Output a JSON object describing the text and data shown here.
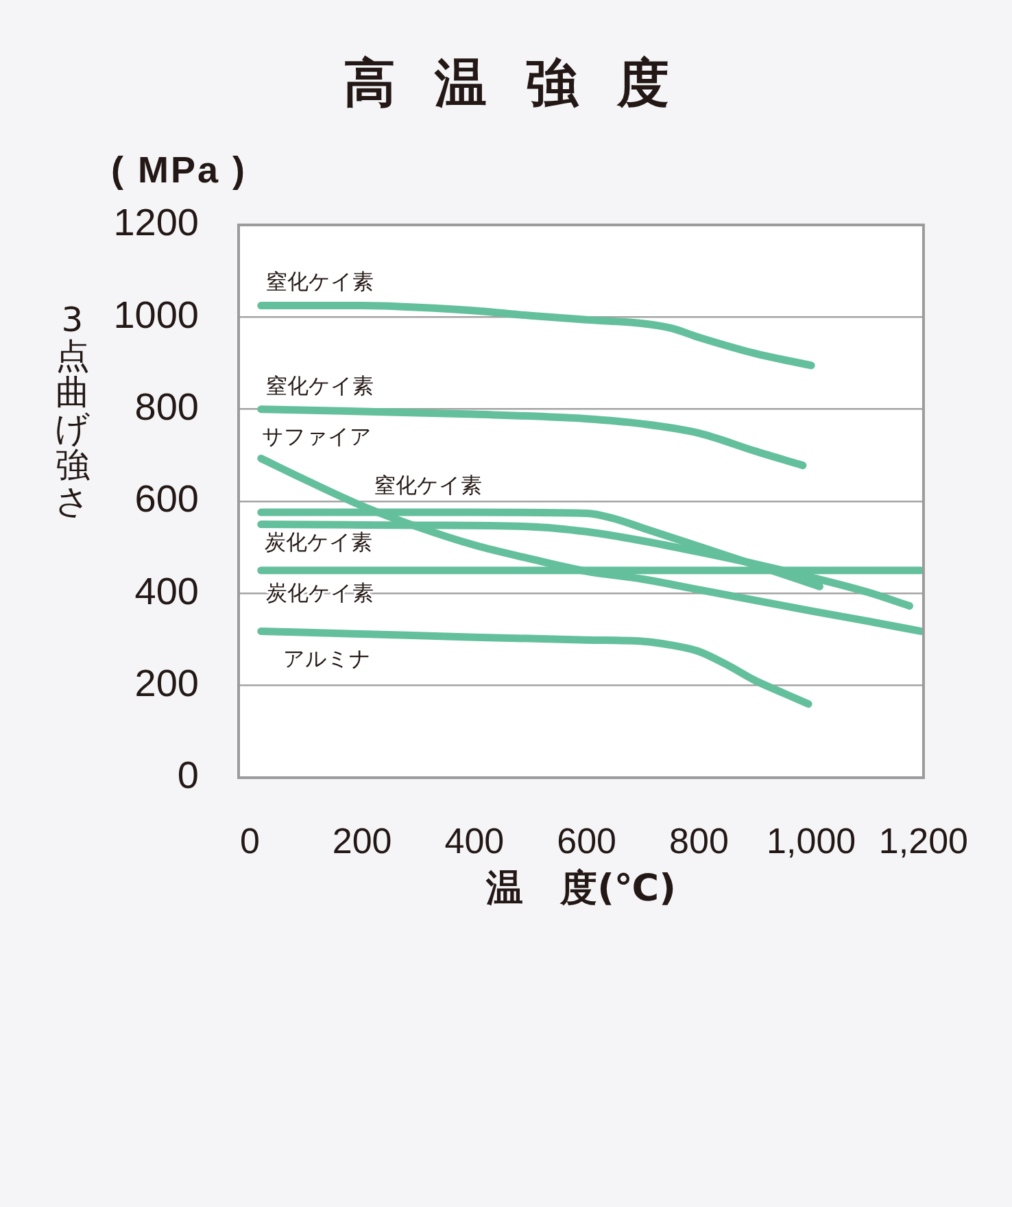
{
  "chart_data": {
    "type": "line",
    "title": "高温強度",
    "xlabel": "温　度(℃)",
    "ylabel": "3点曲げ強さ",
    "annotations": [
      "( MPa )"
    ],
    "xlim": [
      -20,
      1200
    ],
    "xticks": [
      0,
      200,
      400,
      600,
      800,
      {
        "value": 1000,
        "label": "1,000"
      },
      {
        "value": 1200,
        "label": "1,200"
      }
    ],
    "ylim": [
      0,
      1200
    ],
    "yticks": [
      0,
      200,
      400,
      600,
      800,
      1000,
      1200
    ],
    "grid": "y",
    "legend": false,
    "marker": "none",
    "line_style": "solid",
    "series": [
      {
        "name": "窒化ケイ素",
        "color": "#64c09c",
        "x": [
          20,
          200,
          300,
          400,
          500,
          600,
          700,
          750,
          800,
          900,
          1000
        ],
        "values": [
          1025,
          1025,
          1021,
          1014,
          1003,
          994,
          986,
          976,
          956,
          921,
          895
        ]
      },
      {
        "name": "窒化ケイ素",
        "color": "#64c09c",
        "x": [
          20,
          200,
          400,
          600,
          700,
          800,
          900,
          985
        ],
        "values": [
          800,
          795,
          789,
          779,
          768,
          748,
          709,
          678
        ]
      },
      {
        "name": "サファイア",
        "color": "#64c09c",
        "x": [
          20,
          100,
          200,
          300,
          400,
          500,
          600,
          700,
          800,
          900,
          1000,
          1100,
          1195
        ],
        "values": [
          693,
          646,
          590,
          544,
          505,
          475,
          448,
          431,
          408,
          385,
          362,
          340,
          318
        ]
      },
      {
        "name": "窒化ケイ素",
        "color": "#64c09c",
        "x": [
          20,
          400,
          600,
          650,
          700,
          800,
          900,
          1015
        ],
        "values": [
          576,
          576,
          574,
          562,
          542,
          502,
          462,
          415
        ]
      },
      {
        "name": "炭化ケイ素",
        "color": "#64c09c",
        "x": [
          20,
          300,
          500,
          600,
          700,
          800,
          900,
          1000,
          1100,
          1175
        ],
        "values": [
          550,
          548,
          545,
          534,
          514,
          490,
          464,
          435,
          403,
          373
        ]
      },
      {
        "name": "炭化ケイ素",
        "color": "#64c09c",
        "x": [
          20,
          1195
        ],
        "values": [
          450,
          450
        ]
      },
      {
        "name": "アルミナ",
        "color": "#64c09c",
        "x": [
          20,
          200,
          400,
          600,
          700,
          750,
          800,
          850,
          900,
          950,
          995
        ],
        "values": [
          318,
          312,
          305,
          299,
          296,
          288,
          274,
          245,
          211,
          184,
          160
        ]
      }
    ]
  }
}
